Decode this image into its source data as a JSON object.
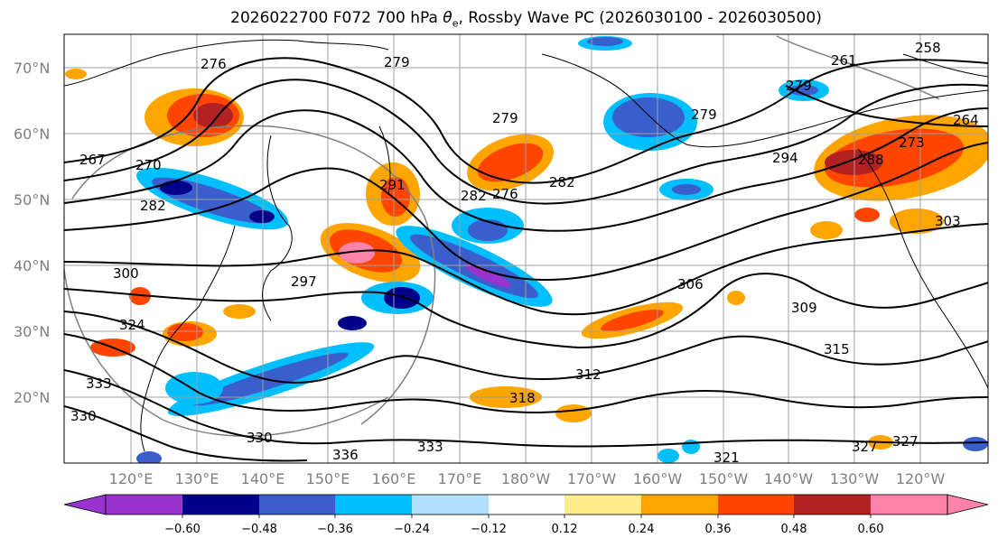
{
  "title": {
    "prefix": "2026022700 F072 700 hPa ",
    "theta": "θ",
    "sub": "e",
    "suffix": ", Rossby Wave PC (2026030100 - 2026030500)"
  },
  "map": {
    "lat_labels": [
      "70°N",
      "60°N",
      "50°N",
      "40°N",
      "30°N",
      "20°N"
    ],
    "lon_labels": [
      "120°E",
      "130°E",
      "140°E",
      "150°E",
      "160°E",
      "170°E",
      "180°W",
      "170°W",
      "160°W",
      "150°W",
      "140°W",
      "130°W",
      "120°W"
    ],
    "contour_labels": [
      "279",
      "276",
      "279",
      "279",
      "258",
      "261",
      "267",
      "264",
      "270",
      "279",
      "282",
      "276",
      "282",
      "288",
      "291",
      "294",
      "273",
      "282",
      "300",
      "297",
      "306",
      "303",
      "309",
      "312",
      "315",
      "318",
      "321",
      "324",
      "327",
      "330",
      "333",
      "336",
      "330",
      "333",
      "327"
    ],
    "colors": {
      "land_outline": "#000000",
      "contour": "#000000",
      "grid": "#a0a0a0",
      "great_circle": "#808080"
    }
  },
  "colorbar": {
    "ticks": [
      "−0.60",
      "−0.48",
      "−0.36",
      "−0.24",
      "−0.12",
      "0.12",
      "0.24",
      "0.36",
      "0.48",
      "0.60"
    ],
    "colors": [
      "#9a32cd",
      "#00008b",
      "#3a5fcd",
      "#00bfff",
      "#b0e2ff",
      "#ffffff",
      "#ffec8b",
      "#ffa500",
      "#ff4500",
      "#b22222",
      "#ff82ab"
    ]
  }
}
